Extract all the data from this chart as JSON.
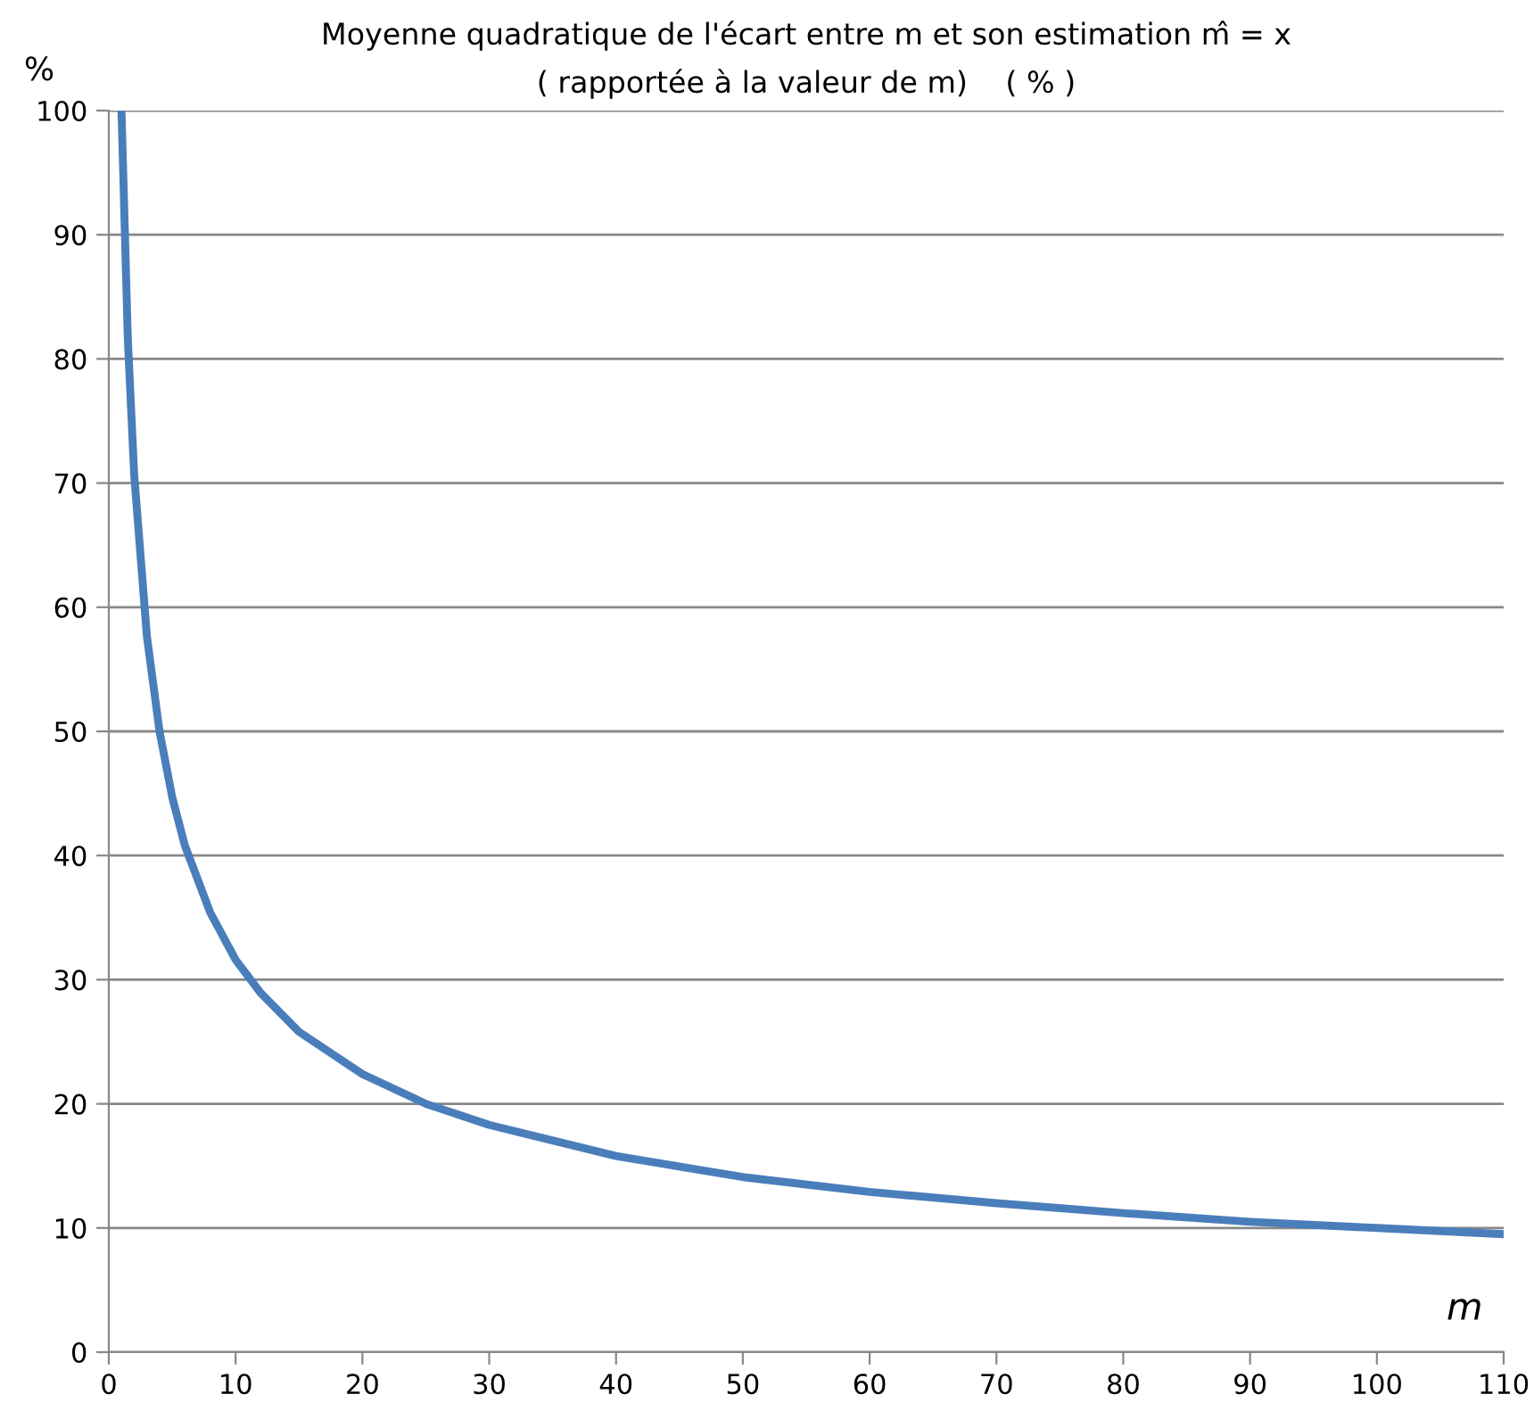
{
  "chart_data": {
    "type": "line",
    "title": "Moyenne quadratique de l'écart entre m et son estimation m̂ = x",
    "subtitle": "( rapportée à la valeur de m)    ( % )",
    "xlabel": "m",
    "ylabel": "%",
    "x": [
      1,
      1.5,
      2,
      3,
      4,
      5,
      6,
      8,
      10,
      12,
      15,
      20,
      25,
      30,
      40,
      50,
      60,
      70,
      80,
      90,
      100,
      110
    ],
    "series": [
      {
        "color": "#4a7ebb",
        "values": [
          100,
          81.6,
          70.7,
          57.7,
          50,
          44.7,
          40.8,
          35.4,
          31.6,
          28.9,
          25.8,
          22.4,
          20,
          18.3,
          15.8,
          14.1,
          12.9,
          12,
          11.2,
          10.5,
          10,
          9.5
        ]
      }
    ],
    "xlim": [
      0,
      110
    ],
    "ylim": [
      0,
      100
    ],
    "xticks": [
      0,
      10,
      20,
      30,
      40,
      50,
      60,
      70,
      80,
      90,
      100,
      110
    ],
    "yticks": [
      0,
      10,
      20,
      30,
      40,
      50,
      60,
      70,
      80,
      90,
      100
    ],
    "grid": "y",
    "marker": "none",
    "line_style": "solid"
  }
}
